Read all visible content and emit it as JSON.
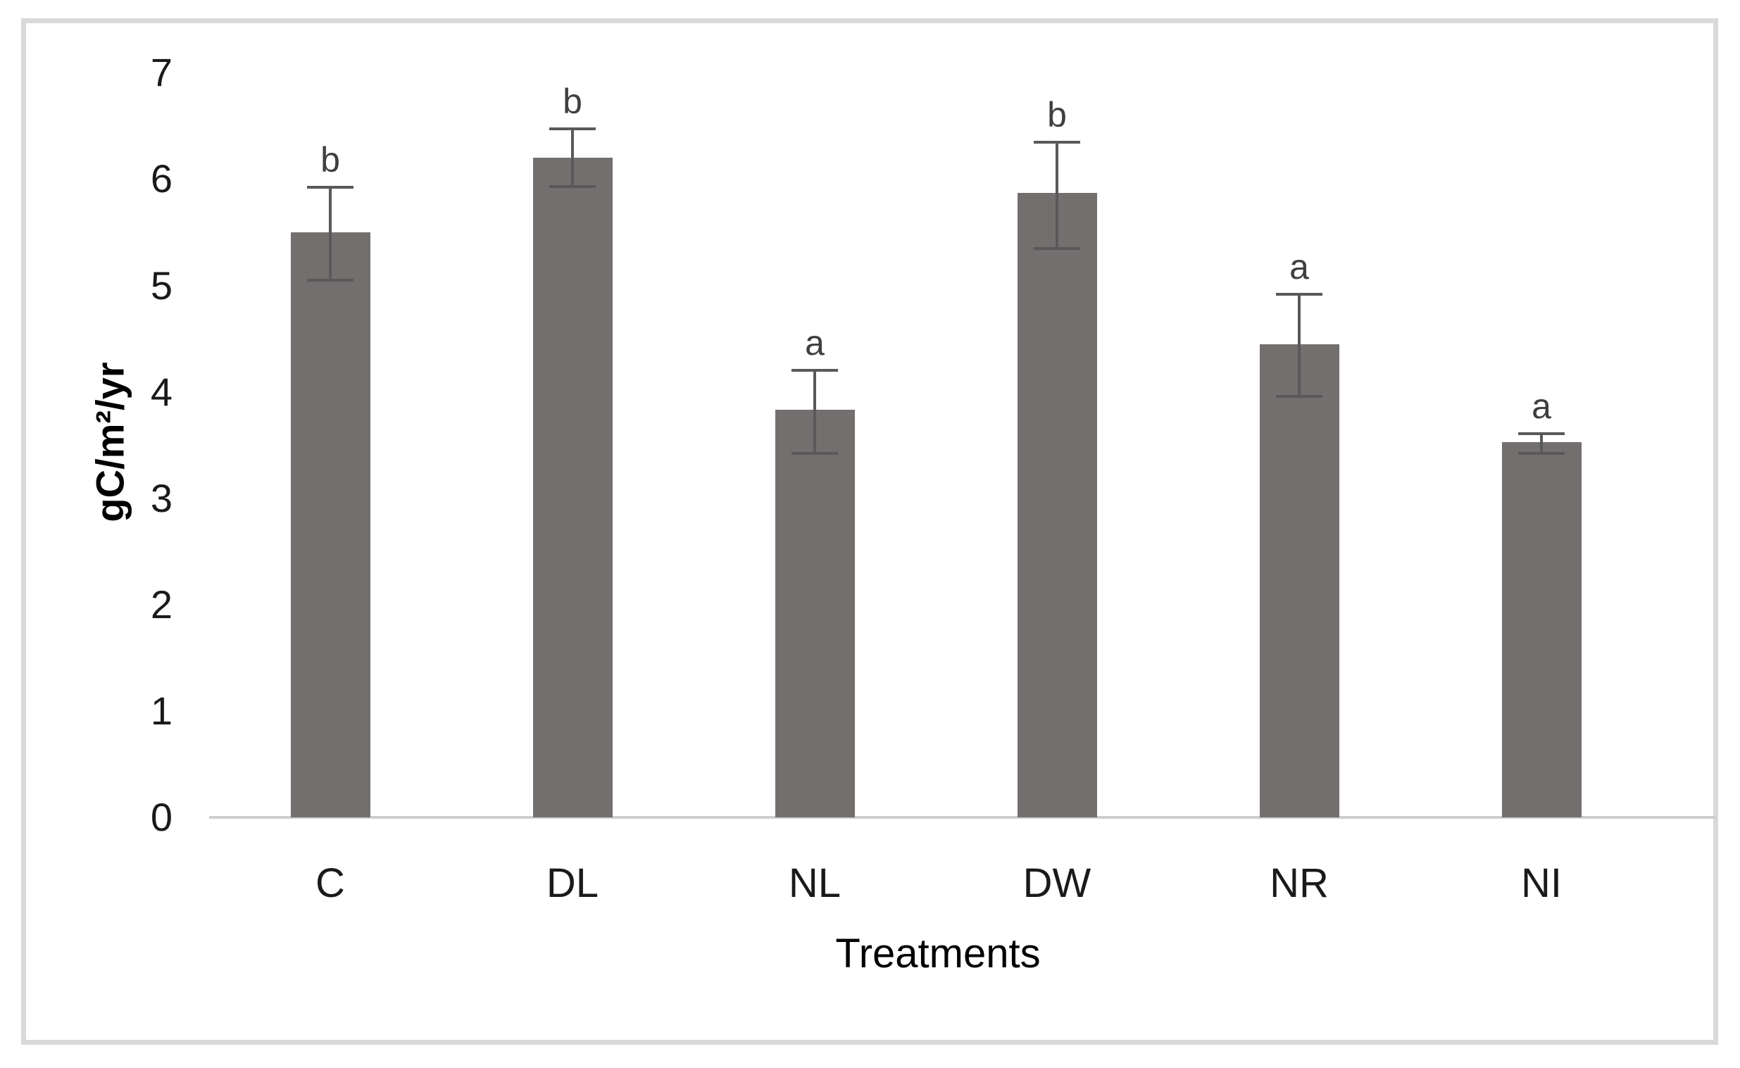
{
  "chart_data": {
    "type": "bar",
    "title": "",
    "categories": [
      "C",
      "DL",
      "NL",
      "DW",
      "NR",
      "NI"
    ],
    "values": [
      5.5,
      6.2,
      3.83,
      5.87,
      4.45,
      3.53
    ],
    "error_up": [
      0.42,
      0.27,
      0.37,
      0.48,
      0.47,
      0.08
    ],
    "error_down": [
      0.45,
      0.27,
      0.41,
      0.52,
      0.49,
      0.11
    ],
    "significance_letters": [
      "b",
      "b",
      "a",
      "b",
      "a",
      "a"
    ],
    "xlabel": "Treatments",
    "ylabel": "gC/m²/yr",
    "ylim": [
      0,
      7
    ],
    "yticks": [
      "0",
      "1",
      "2",
      "3",
      "4",
      "5",
      "6",
      "7"
    ],
    "grid": "off",
    "legend": "none",
    "colors": {
      "bar_fill": "#736F6F",
      "error_bar": "#595959",
      "axis_line": "#CFCECE",
      "frame_border": "#D9D9D9",
      "tick_text": "#1A1A1A",
      "letter_text": "#3F3F3F",
      "background": "#FFFFFF"
    }
  }
}
